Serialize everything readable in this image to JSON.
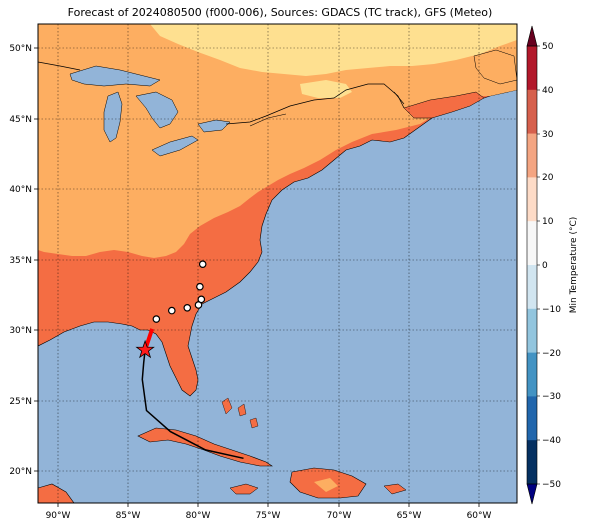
{
  "title": "Forecast of 2024080500 (f000-006), Sources: GDACS (TC track), GFS (Meteo)",
  "lon_ticks": [
    "90°W",
    "85°W",
    "80°W",
    "75°W",
    "70°W",
    "65°W",
    "60°W"
  ],
  "lat_ticks": [
    "20°N",
    "25°N",
    "30°N",
    "35°N",
    "40°N",
    "45°N",
    "50°N"
  ],
  "colorbar": {
    "label": "Min Temperature (°C)",
    "ticks": [
      "50",
      "40",
      "30",
      "20",
      "10",
      "0",
      "−10",
      "−20",
      "−30",
      "−40",
      "−50"
    ],
    "colors": [
      "#b2182b",
      "#d6604d",
      "#f4a582",
      "#fddbc7",
      "#f7f7f7",
      "#d1e5f0",
      "#92c5de",
      "#4393c3",
      "#2166ac",
      "#053061"
    ]
  },
  "colors": {
    "ocean": "#92b4d8",
    "warm_land": "#f46d43",
    "mild_land": "#fdae61",
    "cool_land": "#fee090"
  },
  "storm": {
    "current_position": {
      "lon": -83.8,
      "lat": 28.6
    },
    "forecast_points": [
      {
        "lon": -83.0,
        "lat": 30.8
      },
      {
        "lon": -81.9,
        "lat": 31.4
      },
      {
        "lon": -80.8,
        "lat": 31.6
      },
      {
        "lon": -80.0,
        "lat": 31.8
      },
      {
        "lon": -79.8,
        "lat": 32.2
      },
      {
        "lon": -79.9,
        "lat": 33.1
      },
      {
        "lon": -79.7,
        "lat": 34.7
      }
    ],
    "past_track": [
      {
        "lon": -76.8,
        "lat": 20.9
      },
      {
        "lon": -79.5,
        "lat": 21.5
      },
      {
        "lon": -82.0,
        "lat": 22.8
      },
      {
        "lon": -83.7,
        "lat": 24.3
      },
      {
        "lon": -84.0,
        "lat": 26.5
      },
      {
        "lon": -83.9,
        "lat": 27.7
      },
      {
        "lon": -83.8,
        "lat": 28.6
      }
    ]
  }
}
